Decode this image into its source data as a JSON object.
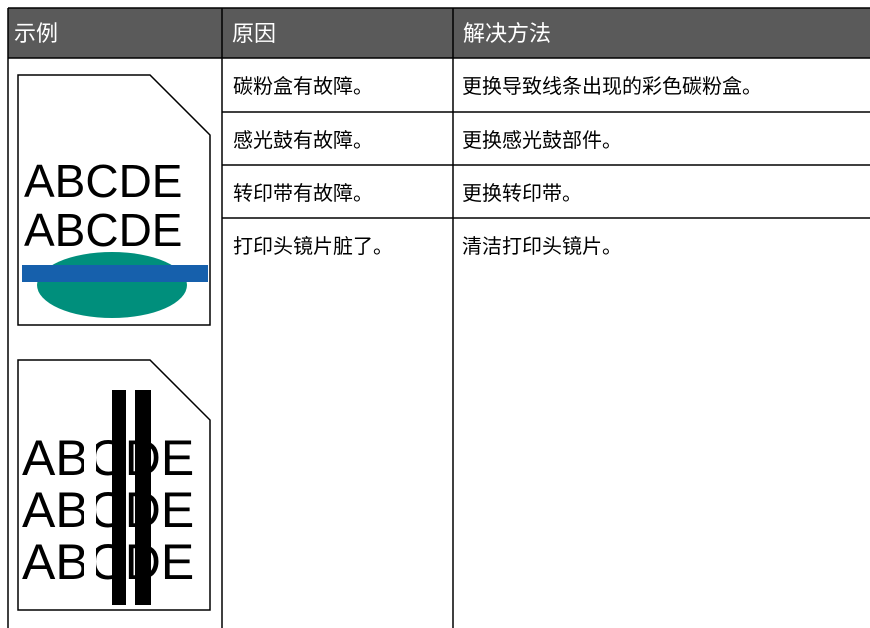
{
  "header": {
    "columns": [
      "示例",
      "原因",
      "解决方法"
    ]
  },
  "examples": [
    {
      "lines": [
        "ABCDE",
        "ABCDE"
      ]
    },
    {
      "lines": [
        "ABCDE",
        "ABCDE",
        "ABCDE"
      ]
    }
  ],
  "table": {
    "rows": [
      [
        "碳粉盒有故障。",
        "更换导致线条出现的彩色碳粉盒。"
      ],
      [
        "感光鼓有故障。",
        "更换感光鼓部件。"
      ],
      [
        "转印带有故障。",
        "更换转印带。"
      ],
      [
        "打印头镜片脏了。",
        "清洁打印头镜片。"
      ]
    ]
  }
}
